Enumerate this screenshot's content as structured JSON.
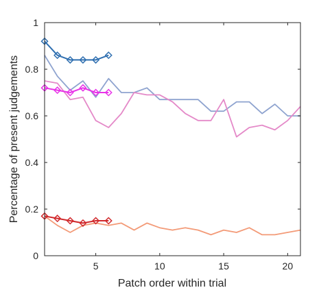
{
  "chart_data": {
    "type": "line",
    "title": "",
    "xlabel": "Patch order within trial",
    "ylabel": "Percentage of present judgements",
    "xlim": [
      1,
      21
    ],
    "ylim": [
      0,
      1
    ],
    "xticks": [
      5,
      10,
      15,
      20
    ],
    "yticks": [
      0,
      0.2,
      0.4,
      0.6,
      0.8,
      1
    ],
    "ytick_labels": [
      "0",
      "0.2",
      "0.4",
      "0.6",
      "0.8",
      "1"
    ],
    "grid": false,
    "legend": "none",
    "series": [
      {
        "color": "#8ea3cf",
        "marker": "none",
        "x": [
          1,
          2,
          3,
          4,
          5,
          6,
          7,
          8,
          9,
          10,
          11,
          12,
          13,
          14,
          15,
          16,
          17,
          18,
          19,
          20,
          21
        ],
        "y": [
          0.86,
          0.77,
          0.71,
          0.75,
          0.68,
          0.76,
          0.7,
          0.7,
          0.72,
          0.67,
          0.67,
          0.67,
          0.67,
          0.62,
          0.62,
          0.66,
          0.66,
          0.61,
          0.65,
          0.6,
          0.6
        ]
      },
      {
        "color": "#e489c8",
        "marker": "none",
        "x": [
          1,
          2,
          3,
          4,
          5,
          6,
          7,
          8,
          9,
          10,
          11,
          12,
          13,
          14,
          15,
          16,
          17,
          18,
          19,
          20,
          21
        ],
        "y": [
          0.75,
          0.74,
          0.67,
          0.68,
          0.58,
          0.55,
          0.61,
          0.7,
          0.69,
          0.69,
          0.66,
          0.61,
          0.58,
          0.58,
          0.67,
          0.51,
          0.55,
          0.56,
          0.54,
          0.58,
          0.64
        ]
      },
      {
        "color": "#f39a77",
        "marker": "none",
        "x": [
          1,
          2,
          3,
          4,
          5,
          6,
          7,
          8,
          9,
          10,
          11,
          12,
          13,
          14,
          15,
          16,
          17,
          18,
          19,
          20,
          21
        ],
        "y": [
          0.17,
          0.13,
          0.1,
          0.13,
          0.14,
          0.13,
          0.14,
          0.11,
          0.14,
          0.12,
          0.11,
          0.12,
          0.11,
          0.09,
          0.11,
          0.1,
          0.12,
          0.09,
          0.09,
          0.1,
          0.11
        ]
      },
      {
        "color": "#2f6fb0",
        "marker": "diamond",
        "x": [
          1,
          2,
          3,
          4,
          5,
          6
        ],
        "y": [
          0.92,
          0.86,
          0.84,
          0.84,
          0.84,
          0.86
        ]
      },
      {
        "color": "#e832e8",
        "marker": "diamond",
        "x": [
          1,
          2,
          3,
          4,
          5,
          6
        ],
        "y": [
          0.72,
          0.71,
          0.7,
          0.72,
          0.7,
          0.7
        ]
      },
      {
        "color": "#d0282b",
        "marker": "diamond",
        "x": [
          1,
          2,
          3,
          4,
          5,
          6
        ],
        "y": [
          0.17,
          0.16,
          0.15,
          0.14,
          0.15,
          0.15
        ]
      }
    ]
  }
}
